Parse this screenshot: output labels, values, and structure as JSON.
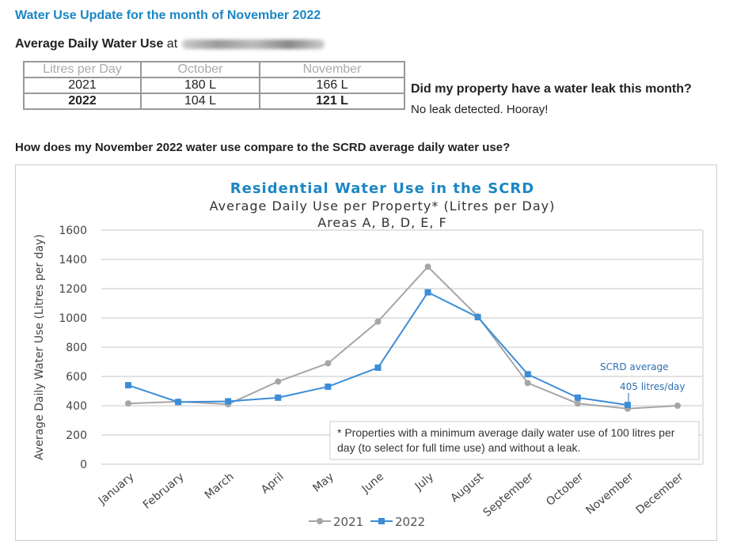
{
  "header": {
    "title": "Water Use Update for the month of November 2022",
    "subtitle_bold": "Average Daily Water Use",
    "subtitle_at": "at"
  },
  "usage_table": {
    "headers": [
      "Litres per Day",
      "October",
      "November"
    ],
    "rows": [
      [
        "2021",
        "180 L",
        "166 L"
      ],
      [
        "2022",
        "104 L",
        "121 L"
      ]
    ]
  },
  "leak": {
    "question": "Did my property have a water leak this month?",
    "answer": "No leak detected. Hooray!"
  },
  "compare_question": "How does my November 2022 water use compare to the SCRD average daily water use?",
  "chart_data": {
    "type": "line",
    "title": "Residential Water Use in the SCRD",
    "subtitle": "Average Daily Use per Property* (Litres per Day)",
    "subtitle2": "Areas A, B, D, E, F",
    "ylabel": "Average Daily Water Use (Litres per day)",
    "ylim": [
      0,
      1600
    ],
    "yticks": [
      0,
      200,
      400,
      600,
      800,
      1000,
      1200,
      1400,
      1600
    ],
    "grid": true,
    "legend": "bottom",
    "categories": [
      "January",
      "February",
      "March",
      "April",
      "May",
      "June",
      "July",
      "August",
      "September",
      "October",
      "November",
      "December"
    ],
    "series": [
      {
        "name": "2021",
        "color": "#a6a6a6",
        "marker": "circle",
        "values": [
          415,
          428,
          410,
          565,
          690,
          975,
          1350,
          1010,
          555,
          415,
          380,
          400
        ]
      },
      {
        "name": "2022",
        "color": "#3c8dd6",
        "marker": "square",
        "values": [
          540,
          425,
          430,
          455,
          530,
          660,
          1175,
          1005,
          615,
          455,
          405,
          null
        ]
      }
    ],
    "annotation": {
      "line1": "SCRD average",
      "line2": "405 litres/day",
      "color": "#2e6fb0"
    },
    "footnote": "* Properties with a minimum average daily water use of 100 litres per day (to select for full time use) and without a leak."
  }
}
